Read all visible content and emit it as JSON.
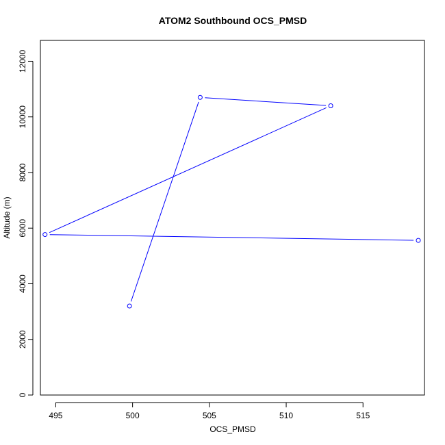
{
  "chart_data": {
    "type": "line",
    "title": "ATOM2 Southbound OCS_PMSD",
    "xlabel": "OCS_PMSD",
    "ylabel": "Altitude (m)",
    "xlim": [
      494,
      519
    ],
    "ylim": [
      0,
      12750
    ],
    "xticks": [
      495,
      500,
      505,
      510,
      515
    ],
    "yticks": [
      0,
      2000,
      4000,
      6000,
      8000,
      10000,
      12000
    ],
    "grid": false,
    "legend": "none",
    "series": [
      {
        "color": "#0000ff",
        "marker": "open-circle",
        "points": [
          {
            "x": 499.8,
            "y": 3200
          },
          {
            "x": 504.4,
            "y": 10700
          },
          {
            "x": 512.9,
            "y": 10400
          },
          {
            "x": 494.3,
            "y": 5770
          },
          {
            "x": 518.6,
            "y": 5560
          }
        ]
      }
    ]
  }
}
